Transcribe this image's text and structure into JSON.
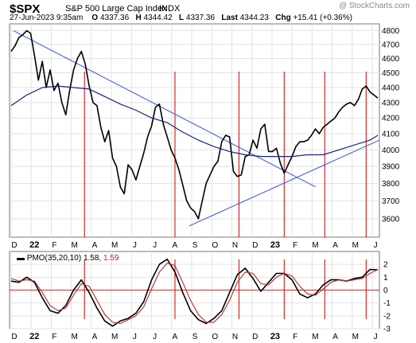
{
  "header": {
    "symbol": "$SPX",
    "name": "S&P 500 Large Cap Index",
    "exchange": "INDX",
    "watermark": "@ StockCharts.com",
    "datetime": "27-Jun-2023 9:35am",
    "open_label": "O",
    "open": "4337.36",
    "high_label": "H",
    "high": "4344.42",
    "low_label": "L",
    "low": "4337.36",
    "last_label": "Last",
    "last": "4344.23",
    "chg_label": "Chg",
    "chg": "+15.41 (+0.36%)"
  },
  "pmo_legend": {
    "label": "PMO(35,20,10)",
    "pmo_value": "1.58",
    "signal_value": "1.59"
  },
  "colors": {
    "price": "#000000",
    "ma": "#1a237e",
    "trendline": "#3355dd",
    "vline": "#cc0000",
    "pmo": "#000000",
    "signal": "#b03030"
  },
  "chart_data": [
    {
      "type": "line",
      "panel": "price",
      "yscale": "log",
      "ylim": [
        3500,
        4850
      ],
      "yticks": [
        "4800",
        "4700",
        "4600",
        "4500",
        "4400",
        "4300",
        "4200",
        "4100",
        "4000",
        "3900",
        "3800",
        "3700",
        "3600"
      ],
      "xlabels": [
        "D",
        "22",
        "F",
        "M",
        "A",
        "M",
        "J",
        "J",
        "A",
        "S",
        "O",
        "N",
        "D",
        "23",
        "F",
        "M",
        "A",
        "M",
        "J"
      ],
      "series": [
        {
          "role": "price",
          "x": [
            0,
            5,
            10,
            15,
            20,
            25,
            30,
            35,
            40,
            45,
            50,
            55,
            60,
            65,
            70,
            75,
            80,
            85,
            90,
            95,
            100,
            105,
            110,
            115,
            120,
            125,
            130,
            135,
            140,
            145,
            150,
            155,
            160,
            165,
            170,
            175,
            180,
            185,
            190,
            195,
            200,
            205,
            210,
            215,
            220,
            225,
            230,
            235,
            240,
            245,
            250,
            255,
            260,
            265,
            270,
            275,
            280,
            285,
            290,
            295,
            300,
            305,
            310,
            315,
            320,
            325,
            330,
            335,
            340,
            345,
            350,
            355,
            360,
            365,
            370,
            375,
            380,
            385,
            390,
            395,
            400,
            405,
            410,
            415,
            420,
            425,
            430,
            435,
            440,
            445,
            450,
            455,
            460,
            465,
            470
          ],
          "values": [
            4650,
            4690,
            4750,
            4770,
            4800,
            4780,
            4620,
            4450,
            4580,
            4400,
            4520,
            4380,
            4430,
            4300,
            4220,
            4380,
            4520,
            4600,
            4650,
            4560,
            4410,
            4300,
            4280,
            4140,
            4050,
            4120,
            3950,
            3900,
            3780,
            3740,
            3910,
            3880,
            3820,
            3900,
            3980,
            4080,
            4150,
            4270,
            4290,
            4160,
            4080,
            4000,
            3950,
            3880,
            3790,
            3700,
            3660,
            3640,
            3600,
            3700,
            3800,
            3850,
            3900,
            3930,
            4050,
            4090,
            4080,
            3870,
            3840,
            3850,
            3960,
            3970,
            4060,
            4010,
            4130,
            4160,
            3990,
            3990,
            4010,
            3920,
            3860,
            3910,
            3960,
            4020,
            4050,
            4050,
            4060,
            4090,
            4130,
            4100,
            4140,
            4160,
            4180,
            4200,
            4240,
            4270,
            4290,
            4300,
            4280,
            4320,
            4390,
            4410,
            4370,
            4350,
            4330
          ]
        },
        {
          "role": "moving-average",
          "x": [
            0,
            20,
            40,
            60,
            80,
            100,
            120,
            140,
            160,
            180,
            200,
            220,
            240,
            260,
            280,
            300,
            320,
            340,
            360,
            380,
            400,
            420,
            440,
            460,
            470
          ],
          "values": [
            4280,
            4350,
            4400,
            4410,
            4400,
            4390,
            4340,
            4290,
            4250,
            4200,
            4170,
            4110,
            4060,
            4020,
            3990,
            3970,
            3960,
            3960,
            3960,
            3970,
            3970,
            4000,
            4030,
            4060,
            4090
          ]
        }
      ],
      "trendlines": [
        {
          "x": [
            3,
            390
          ],
          "values": [
            4800,
            3780
          ]
        },
        {
          "x": [
            228,
            472
          ],
          "values": [
            3560,
            4060
          ]
        }
      ],
      "vertical_markers_x": [
        94,
        210,
        292,
        350,
        402,
        455
      ]
    },
    {
      "type": "line",
      "panel": "pmo",
      "ylim": [
        -3,
        3
      ],
      "yticks": [
        "2",
        "1",
        "0",
        "-1",
        "-2",
        "-3"
      ],
      "xlabels": [
        "D",
        "22",
        "F",
        "M",
        "A",
        "M",
        "J",
        "J",
        "A",
        "S",
        "O",
        "N",
        "D",
        "23",
        "F",
        "M",
        "A",
        "M",
        "J"
      ],
      "series": [
        {
          "name": "PMO(35,20,10)",
          "x": [
            0,
            10,
            20,
            30,
            40,
            50,
            60,
            70,
            80,
            90,
            100,
            110,
            120,
            130,
            140,
            150,
            160,
            170,
            180,
            190,
            200,
            210,
            220,
            230,
            240,
            250,
            260,
            270,
            280,
            290,
            300,
            310,
            320,
            330,
            340,
            350,
            360,
            370,
            380,
            390,
            400,
            410,
            420,
            430,
            440,
            450,
            460,
            470
          ],
          "values": [
            0.7,
            0.6,
            1.0,
            0.6,
            -0.6,
            -1.6,
            -1.8,
            -1.2,
            0.0,
            0.8,
            -0.2,
            -1.4,
            -2.4,
            -2.8,
            -2.4,
            -2.2,
            -1.8,
            -0.9,
            0.8,
            2.0,
            2.4,
            1.4,
            -0.2,
            -1.6,
            -2.3,
            -2.6,
            -2.2,
            -1.6,
            -0.2,
            1.2,
            1.7,
            0.9,
            -0.1,
            0.6,
            1.3,
            1.3,
            0.8,
            -0.3,
            -0.6,
            -0.3,
            0.4,
            0.8,
            0.8,
            0.7,
            0.9,
            1.0,
            1.6,
            1.58
          ]
        },
        {
          "name": "signal",
          "x": [
            0,
            10,
            20,
            30,
            40,
            50,
            60,
            70,
            80,
            90,
            100,
            110,
            120,
            130,
            140,
            150,
            160,
            170,
            180,
            190,
            200,
            210,
            220,
            230,
            240,
            250,
            260,
            270,
            280,
            290,
            300,
            310,
            320,
            330,
            340,
            350,
            360,
            370,
            380,
            390,
            400,
            410,
            420,
            430,
            440,
            450,
            460,
            470
          ],
          "values": [
            0.9,
            0.7,
            0.8,
            0.7,
            -0.2,
            -1.2,
            -1.6,
            -1.4,
            -0.4,
            0.5,
            0.3,
            -0.8,
            -1.9,
            -2.5,
            -2.6,
            -2.3,
            -2.0,
            -1.3,
            0.1,
            1.4,
            2.1,
            1.9,
            0.6,
            -0.8,
            -1.9,
            -2.5,
            -2.5,
            -1.9,
            -0.8,
            0.6,
            1.4,
            1.3,
            0.5,
            0.4,
            1.0,
            1.3,
            1.1,
            0.3,
            -0.3,
            -0.4,
            0.1,
            0.6,
            0.8,
            0.7,
            0.8,
            0.9,
            1.3,
            1.59
          ]
        }
      ]
    }
  ]
}
